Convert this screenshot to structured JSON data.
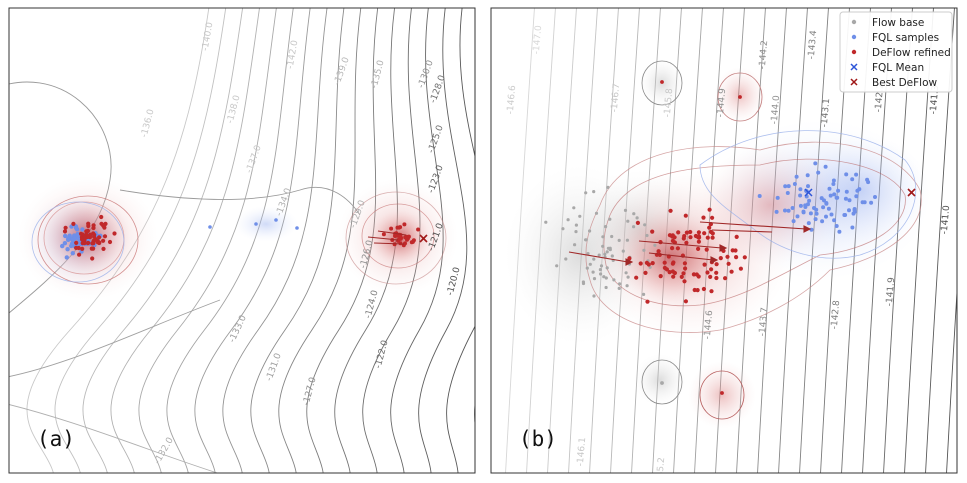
{
  "figure": {
    "title": ""
  },
  "panels": [
    {
      "label": "(a)",
      "contour_labels": [
        "-140.0",
        "-142.0",
        "-139.0",
        "-135.0",
        "-130.0",
        "-128.0",
        "-138.0",
        "-136.0",
        "-137.0",
        "-125.0",
        "-123.0",
        "-134.0",
        "-129.0",
        "-126.0",
        "-121.0",
        "-124.0",
        "-122.0",
        "-120.0",
        "-133.0",
        "-131.0",
        "-127.0",
        "-132.0"
      ]
    },
    {
      "label": "(b)",
      "contour_labels": [
        "-147.0",
        "-146.6",
        "-146.7",
        "-145.8",
        "-144.9",
        "-144.2",
        "-143.4",
        "-144.0",
        "-143.1",
        "-142.2",
        "-141.3",
        "-141.0",
        "-144.6",
        "-143.7",
        "-142.8",
        "-141.9",
        "-146.1",
        "-145.2"
      ]
    }
  ],
  "legend": [
    {
      "label": "Flow base",
      "marker": "dot",
      "color": "#a8a8a8"
    },
    {
      "label": "FQL samples",
      "marker": "dot",
      "color": "#6f8fe8"
    },
    {
      "label": "DeFlow refined",
      "marker": "dot",
      "color": "#c0282a"
    },
    {
      "label": "FQL Mean",
      "marker": "x",
      "color": "#2d55d8"
    },
    {
      "label": "Best DeFlow",
      "marker": "x",
      "color": "#a01818"
    }
  ],
  "chart_data": [
    {
      "type": "scatter",
      "description_series": [
        "Flow base",
        "FQL samples",
        "DeFlow refined"
      ],
      "contour_levels": [
        -142,
        -140,
        -139,
        -138,
        -137,
        -136,
        -135,
        -134,
        -133,
        -132,
        -131,
        -130,
        -129,
        -128,
        -127,
        -126,
        -125,
        -124,
        -123,
        -122,
        -121,
        -120
      ],
      "grid": false,
      "legend": "none"
    },
    {
      "type": "scatter",
      "series_names": [
        "Flow base",
        "FQL samples",
        "DeFlow refined",
        "FQL Mean",
        "Best DeFlow"
      ],
      "contour_levels": [
        -147.0,
        -146.7,
        -146.6,
        -146.1,
        -145.8,
        -145.2,
        -144.9,
        -144.6,
        -144.2,
        -144.0,
        -143.7,
        -143.4,
        -143.1,
        -142.8,
        -142.2,
        -141.9,
        -141.3,
        -141.0
      ],
      "grid": false,
      "legend": "top-right"
    }
  ],
  "colors": {
    "flow": "#a8a8a8",
    "fql": "#6f8fe8",
    "deflow": "#c0282a",
    "fql_mean": "#2d55d8",
    "best": "#a01818",
    "contour": "#555555"
  }
}
